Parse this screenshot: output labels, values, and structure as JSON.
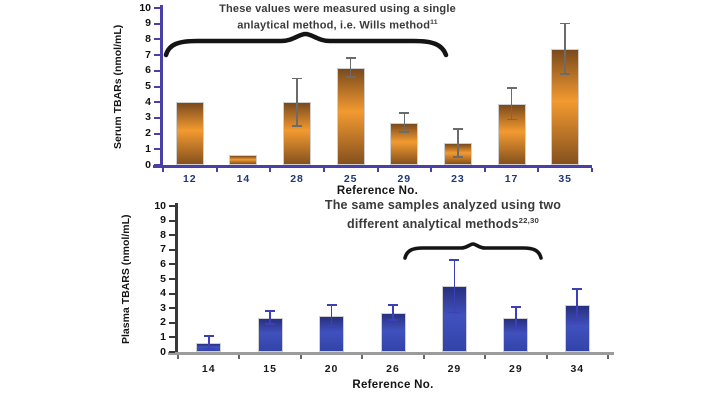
{
  "figure": {
    "background": "#ffffff"
  },
  "chart_data": [
    {
      "type": "bar",
      "title": "",
      "ylabel": "Serum TBARs (nmol/mL)",
      "xlabel": "Reference No.",
      "categories": [
        "12",
        "14",
        "28",
        "25",
        "29",
        "23",
        "17",
        "35"
      ],
      "values": [
        4.0,
        0.65,
        4.0,
        6.2,
        2.7,
        1.4,
        3.9,
        7.4
      ],
      "error_low": [
        null,
        null,
        2.5,
        5.6,
        2.1,
        0.5,
        2.9,
        5.8
      ],
      "error_high": [
        null,
        null,
        5.5,
        6.8,
        3.3,
        2.3,
        4.9,
        9.0
      ],
      "ylim": [
        0,
        10
      ],
      "ytick_step": 1,
      "grid": false,
      "legend": "none",
      "annotation_line1": "These values were measured using a single",
      "annotation_line2": "anlaytical method, i.e. Wills method",
      "annotation_sup": "11",
      "bar_color_top": "#7A4A1C",
      "bar_color_mid": "#F39A30",
      "bar_color_bottom": "#84511E",
      "axis_color": "#4A3FA5",
      "x_axis_color": "#4A3FA5",
      "x_tick_color": "#4A3FA5",
      "error_color": "#6B6B6B",
      "category_color": "#1F3876"
    },
    {
      "type": "bar",
      "title": "",
      "ylabel": "Plasma TBARS (nmol/mL)",
      "xlabel": "Reference No.",
      "categories": [
        "14",
        "15",
        "20",
        "26",
        "29",
        "29",
        "34"
      ],
      "values": [
        0.65,
        2.35,
        2.5,
        2.7,
        4.5,
        2.3,
        3.2
      ],
      "error_low": [
        0.2,
        1.9,
        1.8,
        2.2,
        2.7,
        1.6,
        2.2
      ],
      "error_high": [
        1.1,
        2.8,
        3.2,
        3.2,
        6.3,
        3.1,
        4.3
      ],
      "ylim": [
        0,
        10
      ],
      "ytick_step": 1,
      "grid": false,
      "legend": "none",
      "annotation_line1": "The same samples analyzed using two",
      "annotation_line2": "different analytical methods",
      "annotation_sup": "22,30",
      "bar_color_top": "#27307E",
      "bar_color_mid": "#4051BE",
      "bar_color_bottom": "#3243A8",
      "axis_color": "#383838",
      "x_axis_color": "#9C9C9C",
      "x_tick_color": "#666666",
      "error_color": "#3C3FB5",
      "category_color": "#1A1A1A"
    }
  ]
}
